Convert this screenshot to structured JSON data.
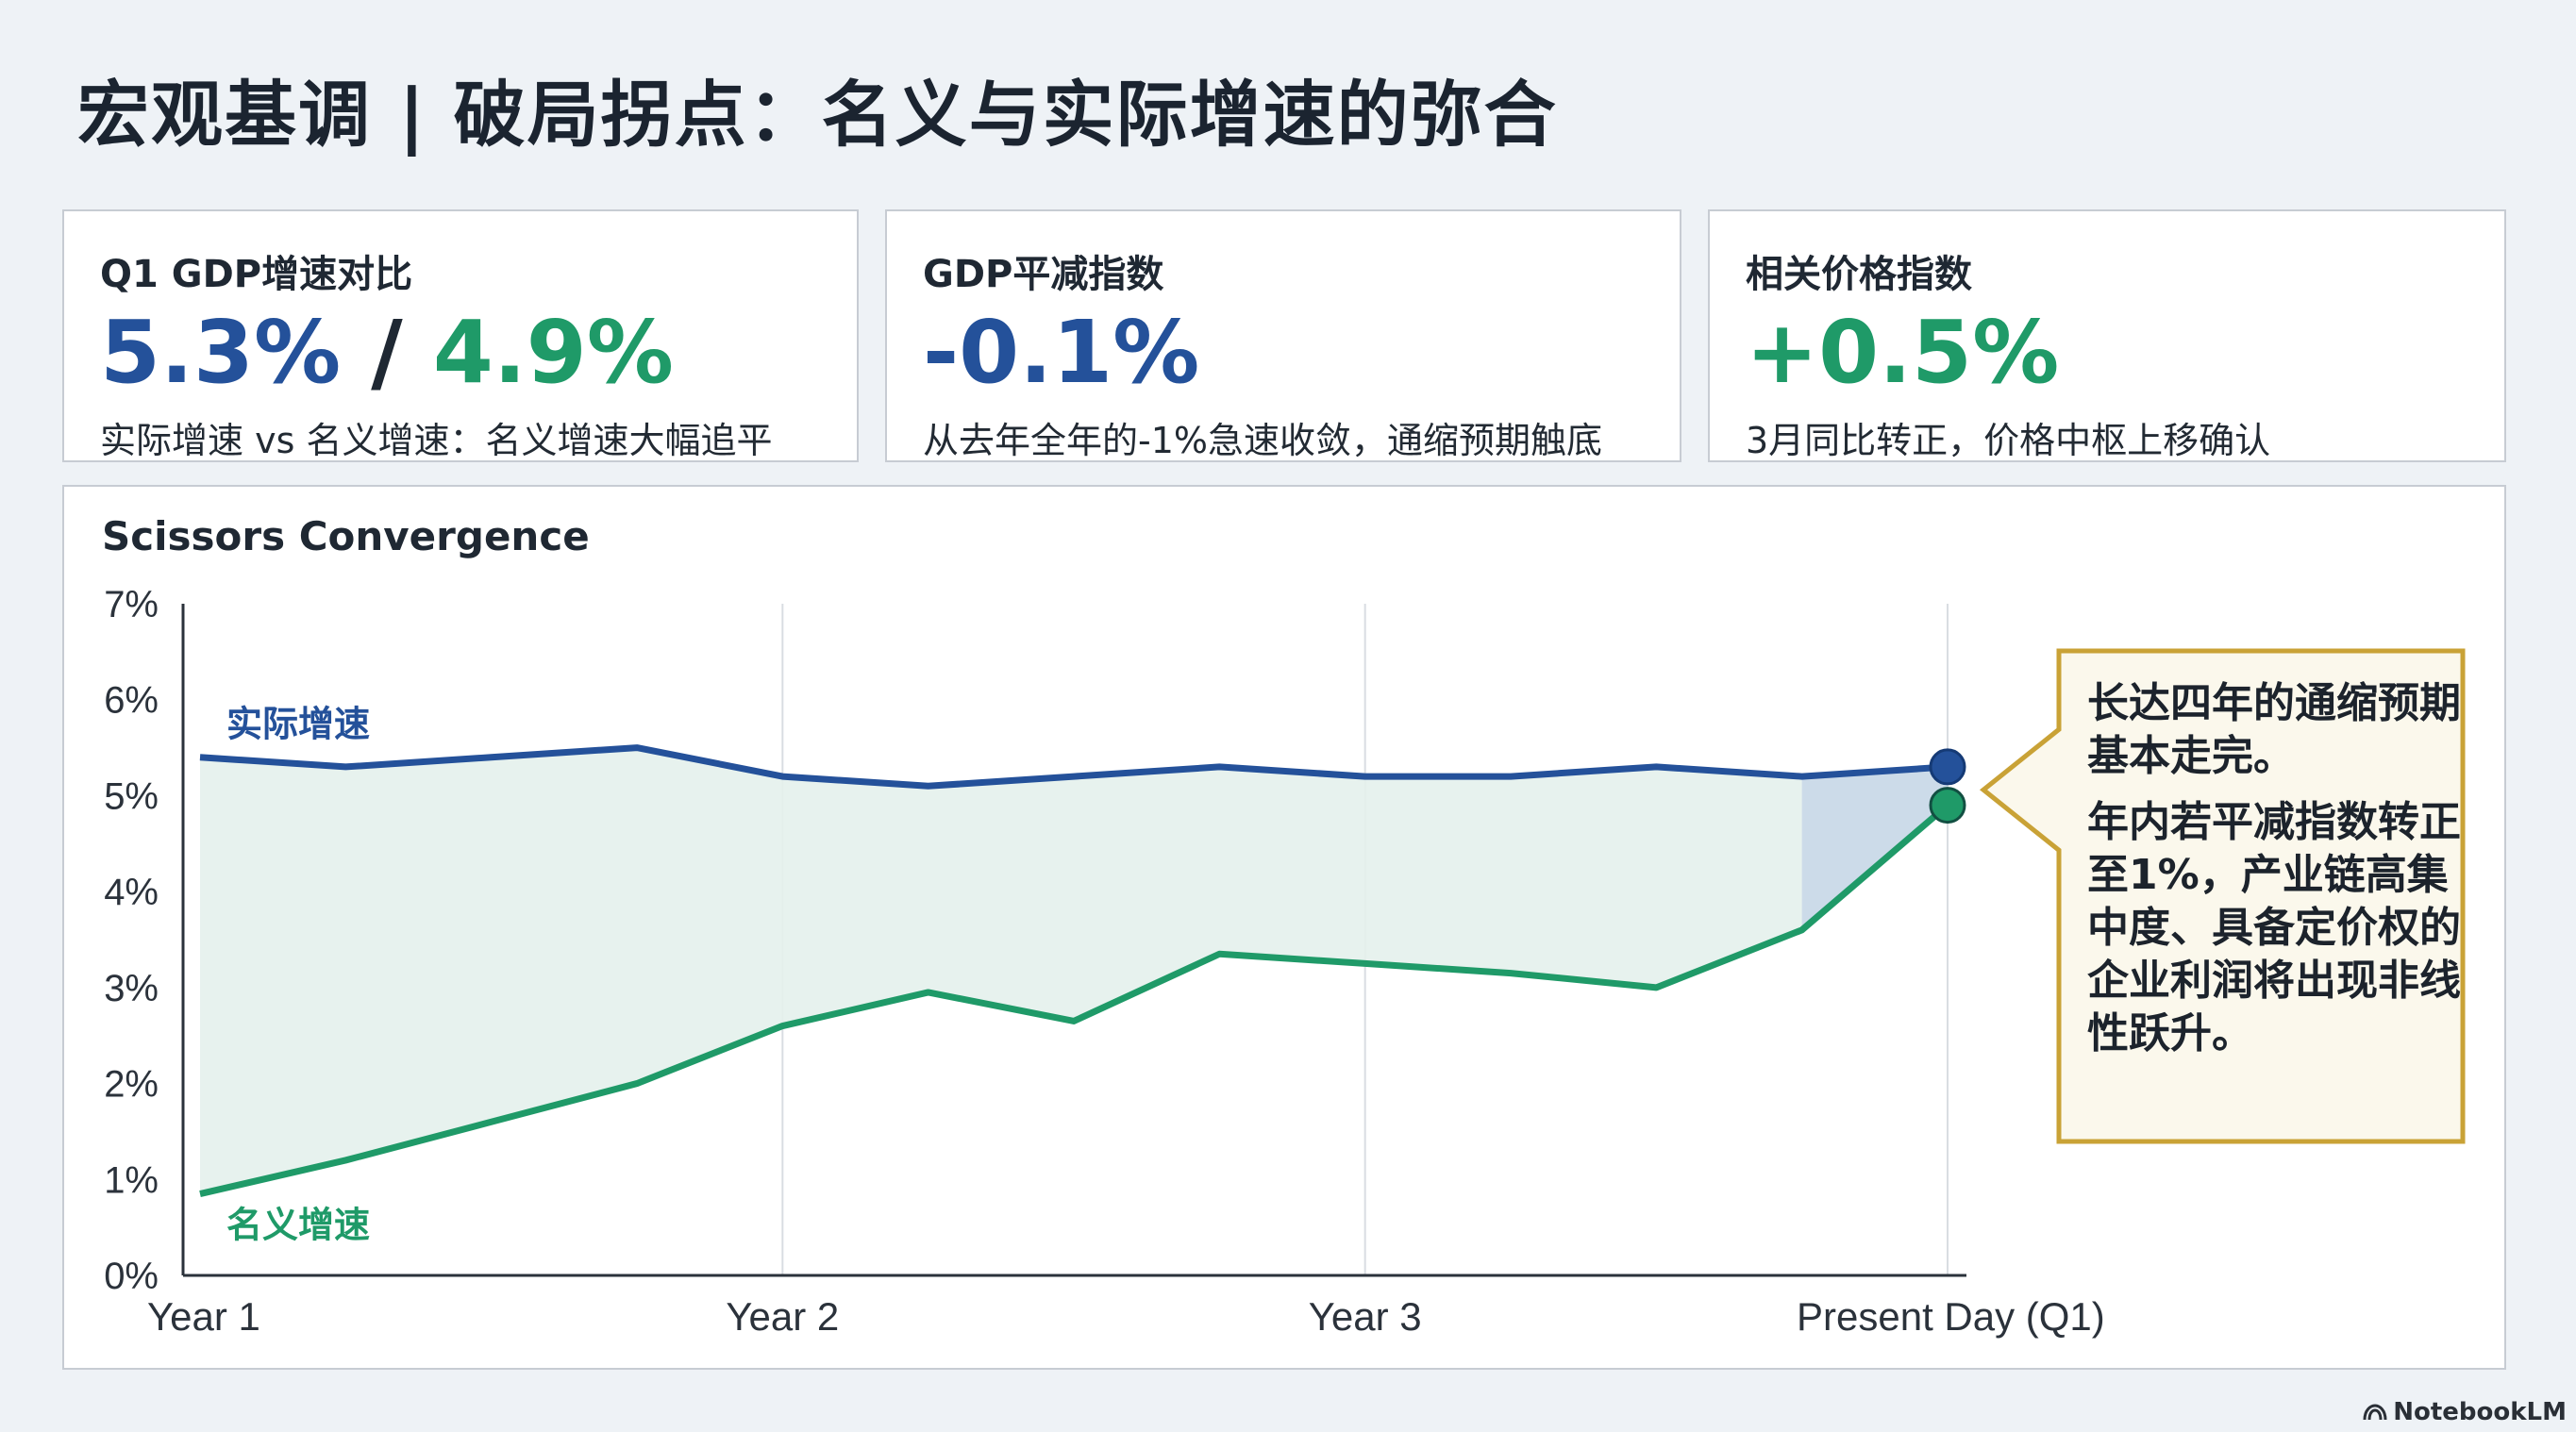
{
  "page": {
    "title": "宏观基调 | 破局拐点：名义与实际增速的弥合"
  },
  "cards": [
    {
      "title": "Q1 GDP增速对比",
      "value_primary": "5.3%",
      "value_separator": " / ",
      "value_secondary": "4.9%",
      "description": "实际增速 vs 名义增速：名义增速大幅追平"
    },
    {
      "title": "GDP平减指数",
      "value": "-0.1%",
      "description": "从去年全年的-1%急速收敛，通缩预期触底"
    },
    {
      "title": "相关价格指数",
      "value": "+0.5%",
      "description": "3月同比转正，价格中枢上移确认"
    }
  ],
  "chart_panel": {
    "title": "Scissors Convergence"
  },
  "callout": {
    "paragraph_1": "长达四年的通缩预期基本走完。",
    "paragraph_2": "年内若平减指数转正至1%，产业链高集中度、具备定价权的企业利润将出现非线性跃升。"
  },
  "brand": {
    "label": "NotebookLM"
  },
  "colors": {
    "real_series": "#24519a",
    "nominal_series": "#1f9a68",
    "gap_fill": "#e4f1ec",
    "callout_border": "#c9a236",
    "callout_bg": "#fbf8ec",
    "grid": "#d9dde2",
    "axis": "#2b323b"
  },
  "chart_data": {
    "type": "line",
    "title": "Scissors Convergence",
    "x": [
      0,
      0.25,
      0.5,
      0.75,
      1.0,
      1.25,
      1.5,
      1.75,
      2.0,
      2.25,
      2.5,
      2.75,
      3.0
    ],
    "x_tick_labels": [
      "Year 1",
      "Year 2",
      "Year 3",
      "Present Day (Q1)"
    ],
    "x_tick_positions": [
      0,
      1,
      2,
      3
    ],
    "ylim": [
      0,
      7
    ],
    "y_tick_values": [
      0,
      1,
      2,
      3,
      4,
      5,
      6,
      7
    ],
    "y_tick_labels": [
      "0%",
      "1%",
      "2%",
      "3%",
      "4%",
      "5%",
      "6%",
      "7%"
    ],
    "xlabel": "",
    "ylabel": "",
    "grid": "vertical",
    "series": [
      {
        "name": "实际增速",
        "values": [
          5.4,
          5.3,
          5.4,
          5.5,
          5.2,
          5.1,
          5.2,
          5.3,
          5.2,
          5.2,
          5.3,
          5.2,
          5.3
        ]
      },
      {
        "name": "名义增速",
        "values": [
          0.85,
          1.2,
          1.6,
          2.0,
          2.6,
          2.95,
          2.65,
          3.35,
          3.25,
          3.15,
          3.0,
          3.6,
          4.9
        ]
      }
    ]
  }
}
